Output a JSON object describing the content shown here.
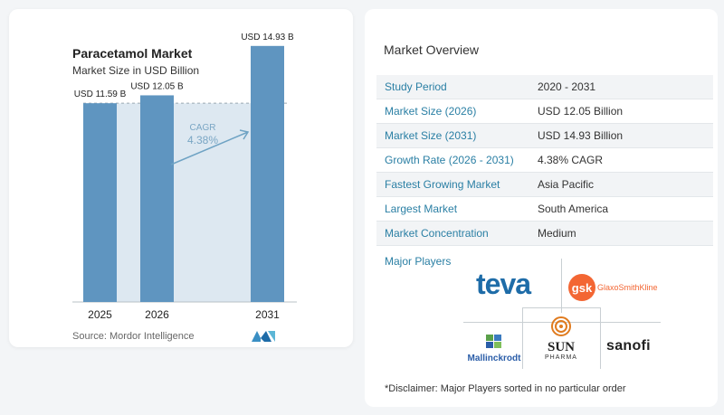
{
  "chart_data": {
    "type": "bar",
    "title": "Paracetamol Market",
    "subtitle": "Market Size in USD Billion",
    "categories": [
      "2025",
      "2026",
      "2031"
    ],
    "values": [
      11.59,
      12.05,
      14.93
    ],
    "value_labels": [
      "USD 11.59 B",
      "USD 12.05 B",
      "USD 14.93 B"
    ],
    "ylim": [
      0,
      15.5
    ],
    "cagr_label": "CAGR",
    "cagr_value": "4.38%",
    "colors": {
      "bar": "#5f95c0",
      "bar_light": "#dde8f1",
      "arrow": "#6fa3c4",
      "dashed": "#9aa8b2"
    }
  },
  "source": "Source:  Mordor Intelligence",
  "overview": {
    "title": "Market Overview",
    "rows": [
      {
        "key": "Study Period",
        "value": "2020 - 2031"
      },
      {
        "key": "Market Size (2026)",
        "value": "USD 12.05 Billion"
      },
      {
        "key": "Market Size (2031)",
        "value": "USD 14.93 Billion"
      },
      {
        "key": "Growth Rate (2026 - 2031)",
        "value": "4.38% CAGR"
      },
      {
        "key": "Fastest Growing Market",
        "value": "Asia Pacific"
      },
      {
        "key": "Largest Market",
        "value": "South America"
      },
      {
        "key": "Market Concentration",
        "value": "Medium"
      }
    ],
    "players_label": "Major Players",
    "players": {
      "teva": "teva",
      "gsk_mark": "gsk",
      "gsk_name": "GlaxoSmithKline",
      "mallinckrodt": "Mallinckrodt",
      "sun": "SUN",
      "sun_sub": "PHARMA",
      "sanofi": "sanofi"
    },
    "disclaimer": "*Disclaimer: Major Players sorted in no particular order"
  }
}
